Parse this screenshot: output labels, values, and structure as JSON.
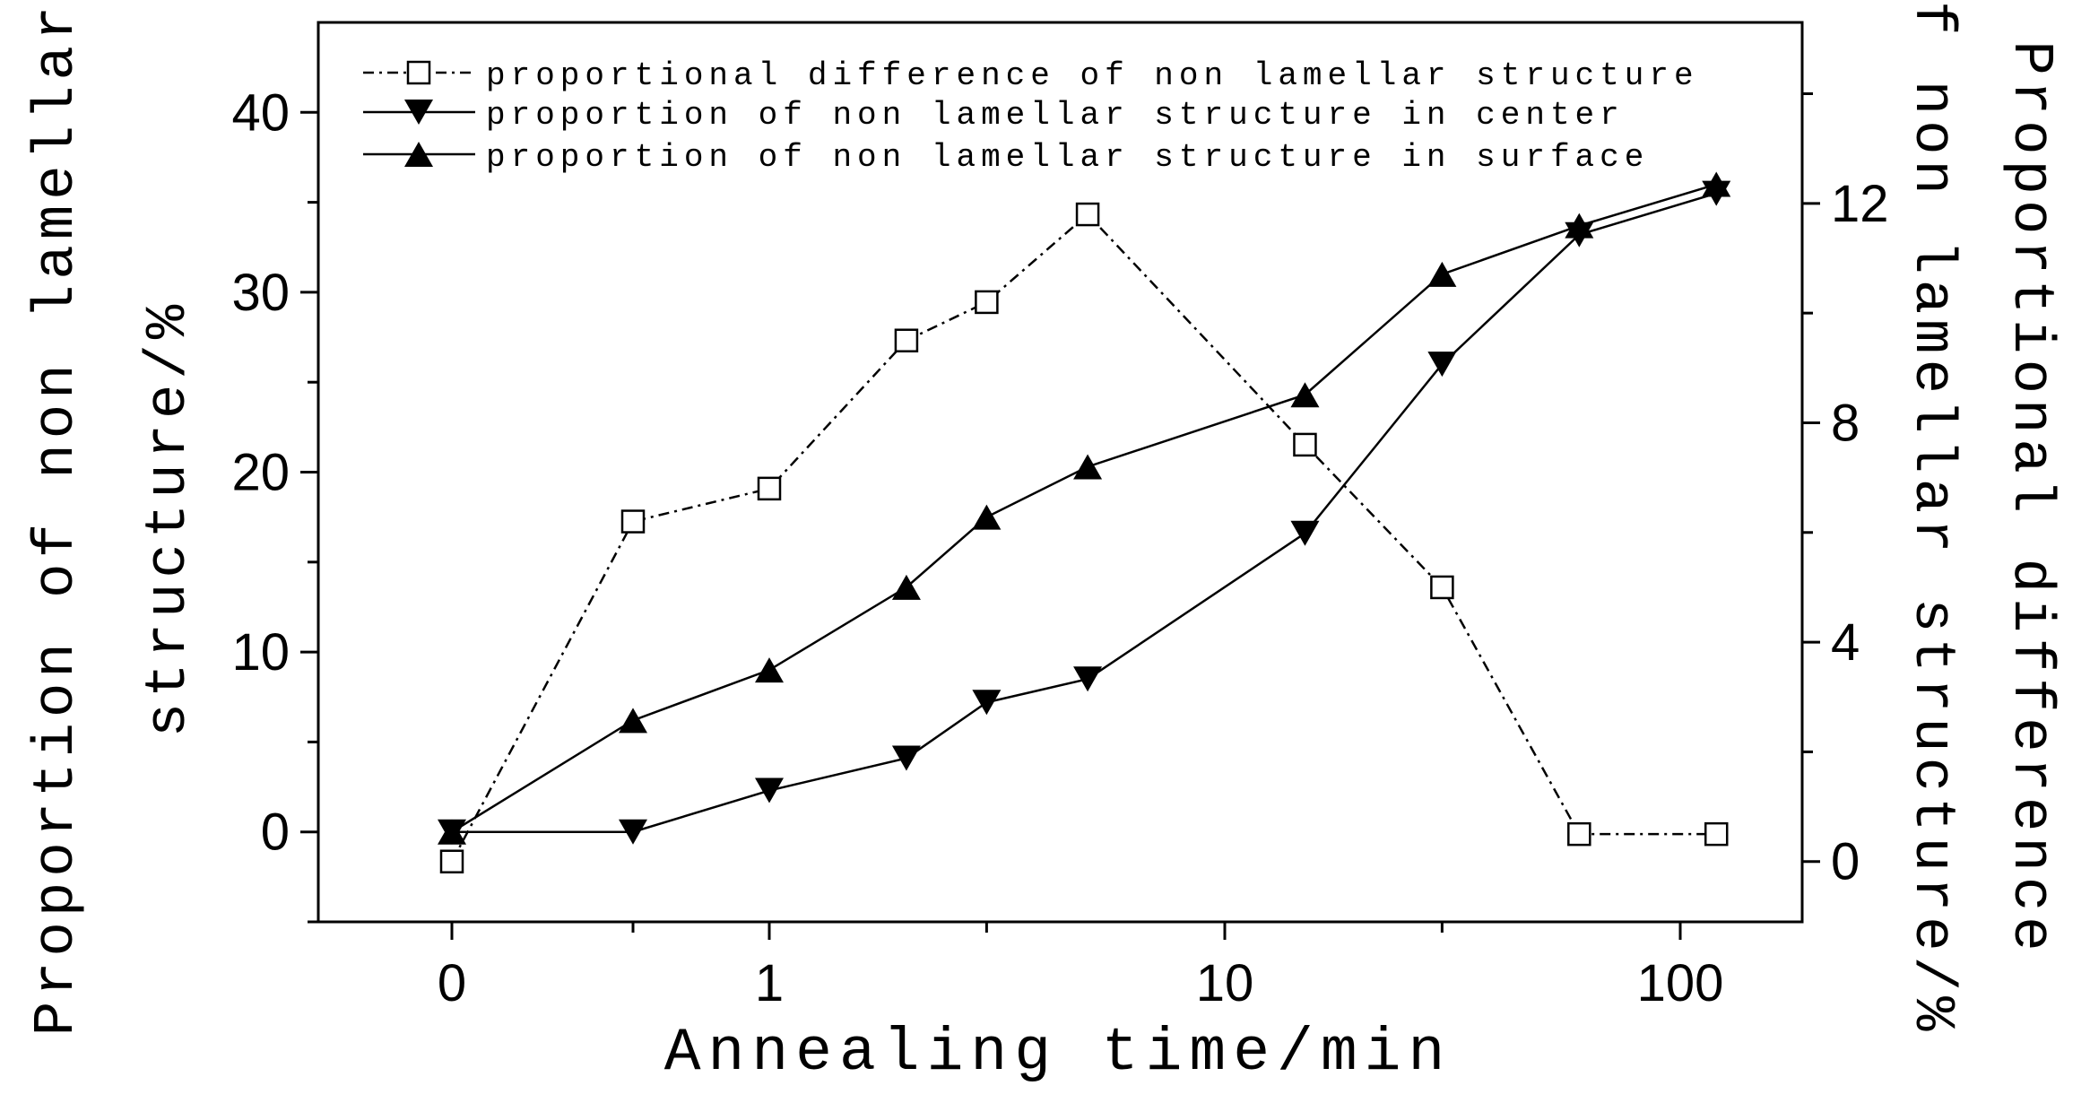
{
  "chart_data": {
    "type": "line",
    "xlabel": "Annealing time/min",
    "ylabel_left": [
      "Proportion of non lamellar",
      "structure/%"
    ],
    "ylabel_right": [
      "Proportional difference",
      "of non lamellar structure/%"
    ],
    "x_scale": "log",
    "x_ticks": [
      "0",
      "1",
      "10",
      "100"
    ],
    "y_left_ticks": [
      "0",
      "10",
      "20",
      "30",
      "40"
    ],
    "y_left_range": [
      -5,
      45
    ],
    "y_right_ticks": [
      "0",
      "4",
      "8",
      "12"
    ],
    "y_right_range": [
      -1.1,
      15.3
    ],
    "x": [
      0,
      0.5,
      1,
      2,
      3,
      5,
      15,
      30,
      60,
      120
    ],
    "series": [
      {
        "name": "proportional difference of non lamellar structure",
        "axis": "right",
        "marker": "open-square",
        "line": "dash-dot",
        "values": [
          0.0,
          6.2,
          6.8,
          9.5,
          10.2,
          11.8,
          7.6,
          5.0,
          0.5,
          0.5
        ]
      },
      {
        "name": "proportion of non lamellar structure in center",
        "axis": "left",
        "marker": "down-triangle",
        "line": "solid",
        "values": [
          0.0,
          0.0,
          2.3,
          4.1,
          7.2,
          8.5,
          16.6,
          26.0,
          33.2,
          35.5
        ]
      },
      {
        "name": "proportion of non lamellar structure in surface",
        "axis": "left",
        "marker": "up-triangle",
        "line": "solid",
        "values": [
          0.0,
          6.2,
          9.0,
          13.6,
          17.5,
          20.3,
          24.3,
          31.0,
          33.7,
          36.0
        ]
      }
    ],
    "legend_position": "top-left",
    "grid": false
  }
}
